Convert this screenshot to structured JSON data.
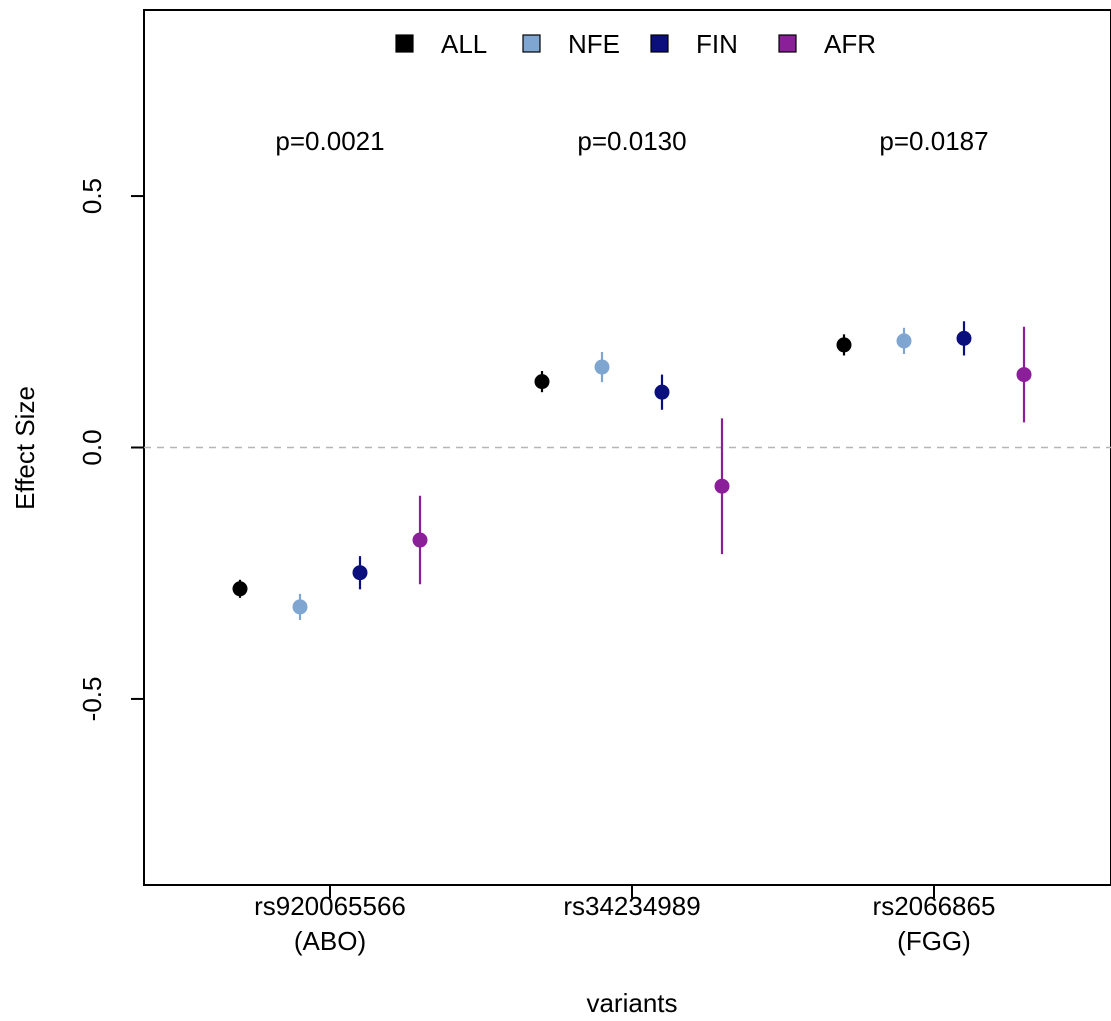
{
  "chart_data": {
    "type": "scatter",
    "title": "",
    "xlabel": "variants",
    "ylabel": "Effect Size",
    "ylim": [
      -0.87,
      0.87
    ],
    "yticks": [
      -0.5,
      0.0,
      0.5
    ],
    "ytick_labels": [
      "-0.5",
      "0.0",
      "0.5"
    ],
    "reference_line": 0.0,
    "grid": false,
    "legend_position": "top",
    "categories": [
      {
        "name": "rs920065566",
        "sublabel": "(ABO)",
        "pvalue": "p=0.0021"
      },
      {
        "name": "rs34234989",
        "sublabel": "",
        "pvalue": "p=0.0130"
      },
      {
        "name": "rs2066865",
        "sublabel": "(FGG)",
        "pvalue": "p=0.0187"
      }
    ],
    "series": [
      {
        "name": "ALL",
        "color": "#000000",
        "values": [
          -0.281,
          0.131,
          0.204
        ],
        "lower": [
          -0.299,
          0.11,
          0.183
        ],
        "upper": [
          -0.263,
          0.152,
          0.225
        ]
      },
      {
        "name": "NFE",
        "color": "#7ea6d1",
        "values": [
          -0.317,
          0.16,
          0.212
        ],
        "lower": [
          -0.343,
          0.13,
          0.186
        ],
        "upper": [
          -0.291,
          0.19,
          0.238
        ]
      },
      {
        "name": "FIN",
        "color": "#0a0f7d",
        "values": [
          -0.249,
          0.11,
          0.217
        ],
        "lower": [
          -0.282,
          0.075,
          0.183
        ],
        "upper": [
          -0.216,
          0.145,
          0.251
        ]
      },
      {
        "name": "AFR",
        "color": "#8b1f99",
        "values": [
          -0.184,
          -0.077,
          0.145
        ],
        "lower": [
          -0.272,
          -0.212,
          0.05
        ],
        "upper": [
          -0.096,
          0.058,
          0.24
        ]
      }
    ]
  }
}
